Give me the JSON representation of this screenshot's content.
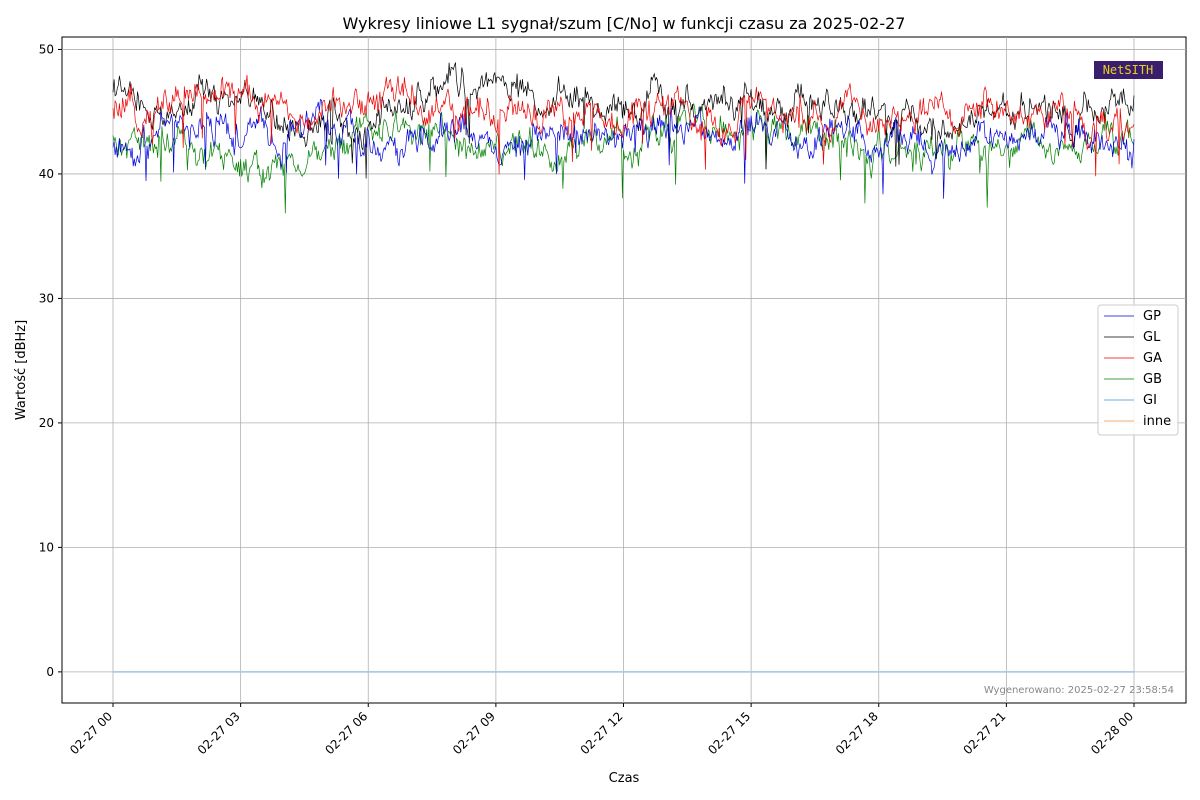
{
  "chart_data": {
    "type": "line",
    "title": "Wykresy liniowe L1 sygnał/szum [C/No] w funkcji czasu za 2025-02-27",
    "xlabel": "Czas",
    "ylabel": "Wartość [dBHz]",
    "xlim": [
      "2025-02-27 00:00",
      "2025-02-28 00:00"
    ],
    "ylim": [
      -2.5,
      51
    ],
    "x_ticks": [
      {
        "x": "2025-02-27 00:00",
        "label": "02-27 00"
      },
      {
        "x": "2025-02-27 03:00",
        "label": "02-27 03"
      },
      {
        "x": "2025-02-27 06:00",
        "label": "02-27 06"
      },
      {
        "x": "2025-02-27 09:00",
        "label": "02-27 09"
      },
      {
        "x": "2025-02-27 12:00",
        "label": "02-27 12"
      },
      {
        "x": "2025-02-27 15:00",
        "label": "02-27 15"
      },
      {
        "x": "2025-02-27 18:00",
        "label": "02-27 18"
      },
      {
        "x": "2025-02-27 21:00",
        "label": "02-27 21"
      },
      {
        "x": "2025-02-28 00:00",
        "label": "02-28 00"
      }
    ],
    "y_ticks": [
      0,
      10,
      20,
      30,
      40,
      50
    ],
    "grid": true,
    "legend_position": "center-right",
    "x": [
      "2025-02-27 00:00",
      "2025-02-27 01:00",
      "2025-02-27 02:00",
      "2025-02-27 03:00",
      "2025-02-27 04:00",
      "2025-02-27 05:00",
      "2025-02-27 06:00",
      "2025-02-27 07:00",
      "2025-02-27 08:00",
      "2025-02-27 09:00",
      "2025-02-27 10:00",
      "2025-02-27 11:00",
      "2025-02-27 12:00",
      "2025-02-27 13:00",
      "2025-02-27 14:00",
      "2025-02-27 15:00",
      "2025-02-27 16:00",
      "2025-02-27 17:00",
      "2025-02-27 18:00",
      "2025-02-27 19:00",
      "2025-02-27 20:00",
      "2025-02-27 21:00",
      "2025-02-27 22:00",
      "2025-02-27 23:00",
      "2025-02-28 00:00"
    ],
    "series": [
      {
        "name": "GP",
        "color": "#0000dd",
        "values": [
          42.2,
          43.0,
          43.8,
          43.5,
          42.8,
          44.5,
          42.5,
          42.9,
          44.2,
          42.6,
          43.0,
          43.4,
          43.1,
          43.6,
          42.9,
          43.1,
          42.4,
          43.9,
          42.1,
          41.8,
          42.3,
          42.9,
          43.5,
          42.6,
          42.8
        ]
      },
      {
        "name": "GL",
        "color": "#000000",
        "values": [
          46.8,
          44.5,
          45.6,
          46.0,
          44.2,
          44.6,
          44.0,
          45.9,
          47.6,
          47.3,
          46.0,
          46.4,
          45.8,
          45.2,
          46.3,
          45.1,
          45.9,
          44.4,
          45.0,
          44.2,
          43.9,
          45.6,
          45.4,
          44.8,
          46.3
        ]
      },
      {
        "name": "GA",
        "color": "#ee0000",
        "values": [
          44.5,
          45.2,
          46.4,
          46.1,
          45.3,
          45.8,
          45.4,
          46.1,
          44.9,
          45.1,
          44.8,
          44.0,
          44.6,
          45.3,
          44.4,
          44.7,
          44.9,
          45.2,
          44.8,
          44.5,
          44.9,
          45.3,
          44.6,
          44.3,
          44.0
        ]
      },
      {
        "name": "GB",
        "color": "#008000",
        "values": [
          42.5,
          42.3,
          41.6,
          41.0,
          40.8,
          41.7,
          43.4,
          43.3,
          42.7,
          42.1,
          41.9,
          41.8,
          42.2,
          43.2,
          43.6,
          43.1,
          43.4,
          42.8,
          42.4,
          42.1,
          41.4,
          42.0,
          42.5,
          42.6,
          42.3
        ]
      },
      {
        "name": "GI",
        "color": "#9ec8ee",
        "values": [
          0,
          0,
          0,
          0,
          0,
          0,
          0,
          0,
          0,
          0,
          0,
          0,
          0,
          0,
          0,
          0,
          0,
          0,
          0,
          0,
          0,
          0,
          0,
          0,
          0
        ]
      },
      {
        "name": "inne",
        "color": "#f7c9a3",
        "values": [
          0,
          0,
          0,
          0,
          0,
          0,
          0,
          0,
          0,
          0,
          0,
          0,
          0,
          0,
          0,
          0,
          0,
          0,
          0,
          0,
          0,
          0,
          0,
          0,
          0
        ]
      }
    ],
    "footer_note": "Wygenerowano: 2025-02-27 23:58:54",
    "logo_text": "NetSITH"
  }
}
